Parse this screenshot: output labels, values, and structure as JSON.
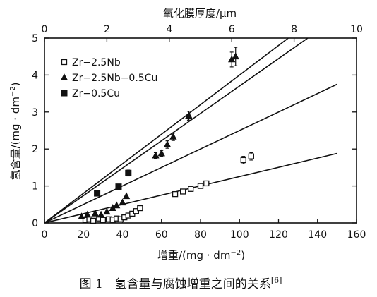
{
  "chart_data": {
    "type": "scatter",
    "x_bottom": {
      "label_prefix": "增重/(mg · dm",
      "label_exp": "−2",
      "label_suffix": ")",
      "range": [
        0,
        160
      ],
      "ticks": [
        0,
        20,
        40,
        60,
        80,
        100,
        120,
        140,
        160
      ]
    },
    "x_top": {
      "label": "氧化膜厚度/μm",
      "range": [
        0,
        10
      ],
      "ticks": [
        0,
        2,
        4,
        6,
        8,
        10
      ]
    },
    "y": {
      "label_prefix": "氢含量/(mg · dm",
      "label_exp": "−2",
      "label_suffix": ")",
      "range": [
        0,
        5
      ],
      "ticks": [
        0,
        1,
        2,
        3,
        4,
        5
      ]
    },
    "reference_lines": [
      {
        "x": [
          0,
          125
        ],
        "y": [
          0,
          5.0
        ]
      },
      {
        "x": [
          0,
          135
        ],
        "y": [
          0,
          5.0
        ]
      },
      {
        "x": [
          0,
          150
        ],
        "y": [
          0,
          3.75
        ]
      },
      {
        "x": [
          0,
          150
        ],
        "y": [
          0,
          1.88
        ]
      }
    ],
    "series": [
      {
        "name": "Zr−2.5Nb",
        "marker": "open-square",
        "points": [
          {
            "x": 21,
            "y": 0.08
          },
          {
            "x": 23,
            "y": 0.1
          },
          {
            "x": 25,
            "y": 0.06
          },
          {
            "x": 28,
            "y": 0.12
          },
          {
            "x": 30,
            "y": 0.08
          },
          {
            "x": 33,
            "y": 0.1
          },
          {
            "x": 35,
            "y": 0.09
          },
          {
            "x": 37,
            "y": 0.12
          },
          {
            "x": 39,
            "y": 0.1
          },
          {
            "x": 41,
            "y": 0.15
          },
          {
            "x": 43,
            "y": 0.2
          },
          {
            "x": 45,
            "y": 0.25
          },
          {
            "x": 47,
            "y": 0.32
          },
          {
            "x": 49,
            "y": 0.4
          },
          {
            "x": 67,
            "y": 0.78
          },
          {
            "x": 71,
            "y": 0.85
          },
          {
            "x": 75,
            "y": 0.92
          },
          {
            "x": 80,
            "y": 1.0
          },
          {
            "x": 83,
            "y": 1.07
          },
          {
            "x": 102,
            "y": 1.7,
            "err": 0.1
          },
          {
            "x": 106,
            "y": 1.8,
            "err": 0.1
          }
        ]
      },
      {
        "name": "Zr−2.5Nb−0.5Cu",
        "marker": "filled-triangle",
        "points": [
          {
            "x": 19,
            "y": 0.17
          },
          {
            "x": 22,
            "y": 0.22
          },
          {
            "x": 26,
            "y": 0.25
          },
          {
            "x": 29,
            "y": 0.22
          },
          {
            "x": 32,
            "y": 0.3
          },
          {
            "x": 35,
            "y": 0.4
          },
          {
            "x": 37,
            "y": 0.47
          },
          {
            "x": 40,
            "y": 0.55
          },
          {
            "x": 42,
            "y": 0.72
          },
          {
            "x": 57,
            "y": 1.82,
            "err": 0.08
          },
          {
            "x": 60,
            "y": 1.88,
            "err": 0.08
          },
          {
            "x": 63,
            "y": 2.12,
            "err": 0.1
          },
          {
            "x": 66,
            "y": 2.33,
            "err": 0.1
          },
          {
            "x": 74,
            "y": 2.9,
            "err": 0.12
          },
          {
            "x": 96,
            "y": 4.42,
            "err": 0.2
          },
          {
            "x": 98,
            "y": 4.5,
            "err": 0.25
          }
        ]
      },
      {
        "name": "Zr−0.5Cu",
        "marker": "filled-square",
        "points": [
          {
            "x": 27,
            "y": 0.8
          },
          {
            "x": 38,
            "y": 0.98
          },
          {
            "x": 43,
            "y": 1.35,
            "err": 0.08
          }
        ]
      }
    ]
  },
  "caption": {
    "text": "图 1　氢含量与腐蚀增重之间的关系",
    "ref": "[6]"
  }
}
